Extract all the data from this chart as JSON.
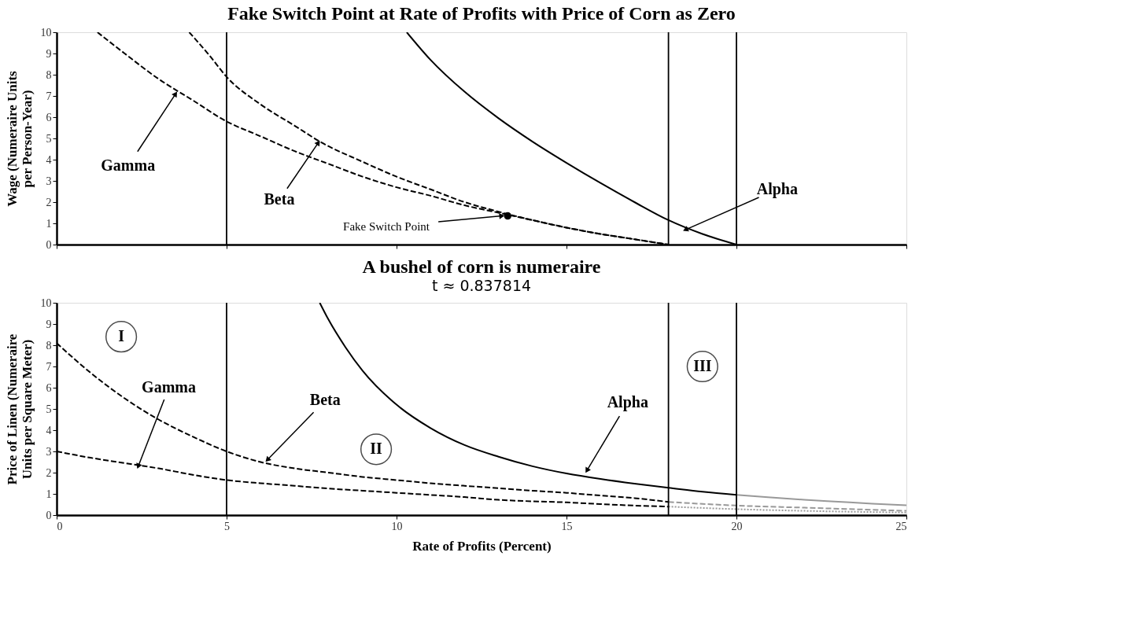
{
  "chart_data": [
    {
      "type": "line",
      "title": "Fake Switch Point at Rate of Profits with Price of Corn as Zero",
      "ylabel": "Wage (Numeraire Units per Person-Year)",
      "xlim": [
        0,
        25
      ],
      "xticks": [
        0,
        5,
        10,
        15,
        20,
        25
      ],
      "ylim": [
        0,
        10
      ],
      "yticks": [
        0,
        1,
        2,
        3,
        4,
        5,
        6,
        7,
        8,
        9,
        10
      ],
      "tick_labels": "y",
      "grid": false,
      "series": [
        {
          "color": "#000000",
          "line_style": "dashed",
          "x": [
            1.2,
            2,
            3,
            4,
            5,
            6,
            7,
            8,
            9,
            10,
            11,
            12,
            13,
            14,
            15,
            16,
            17,
            18
          ],
          "values": [
            10,
            9.0,
            7.8,
            6.8,
            5.8,
            5.1,
            4.4,
            3.8,
            3.2,
            2.7,
            2.3,
            1.85,
            1.5,
            1.15,
            0.8,
            0.5,
            0.25,
            0
          ]
        },
        {
          "color": "#000000",
          "line_style": "dashed",
          "x": [
            3.9,
            4.5,
            5,
            6,
            7,
            7.8,
            9,
            10,
            11,
            12,
            13,
            14,
            15,
            16,
            17,
            18
          ],
          "values": [
            10,
            8.9,
            7.9,
            6.6,
            5.6,
            4.8,
            3.9,
            3.2,
            2.6,
            2.0,
            1.55,
            1.15,
            0.8,
            0.5,
            0.25,
            0
          ]
        },
        {
          "color": "#000000",
          "line_style": "solid",
          "x": [
            10.3,
            11,
            12,
            13,
            14,
            15,
            16,
            17,
            18,
            19,
            20
          ],
          "values": [
            10,
            8.7,
            7.2,
            5.95,
            4.85,
            3.85,
            2.9,
            2.0,
            1.15,
            0.5,
            0
          ]
        },
        {
          "type": "scatter",
          "marker": "circle",
          "color": "#000000",
          "x": [
            13.27
          ],
          "values": [
            1.35
          ]
        }
      ],
      "ref_lines": [
        {
          "axis": "x",
          "value": 5,
          "color": "#000000"
        },
        {
          "axis": "x",
          "value": 18,
          "color": "#000000"
        },
        {
          "axis": "x",
          "value": 20,
          "color": "#000000"
        }
      ],
      "annotations": [
        {
          "text": "Gamma",
          "x": 3.5,
          "y": 7.1
        },
        {
          "text": "Beta",
          "x": 7.7,
          "y": 4.8
        },
        {
          "text": "Alpha",
          "x": 18.5,
          "y": 0.7
        },
        {
          "text": "Fake Switch Point",
          "x": 13.1,
          "y": 1.35
        }
      ]
    },
    {
      "type": "line",
      "title": "A bushel of corn is numeraire",
      "subtitle": "t ≈ 0.837814",
      "xlabel": "Rate of Profits (Percent)",
      "ylabel": "Price of Linen (Numeraire Units per Square Meter)",
      "xlim": [
        0,
        25
      ],
      "xticks": [
        0,
        5,
        10,
        15,
        20,
        25
      ],
      "ylim": [
        0,
        10
      ],
      "yticks": [
        0,
        1,
        2,
        3,
        4,
        5,
        6,
        7,
        8,
        9,
        10
      ],
      "grid": false,
      "series": [
        {
          "color": "#000000",
          "line_style": "dashed",
          "x": [
            0,
            1,
            2,
            3,
            4,
            5,
            6,
            7,
            8,
            9,
            10,
            11,
            12,
            13,
            14,
            15,
            16,
            17,
            18
          ],
          "values": [
            3.0,
            2.7,
            2.45,
            2.2,
            1.9,
            1.65,
            1.5,
            1.38,
            1.25,
            1.15,
            1.05,
            0.95,
            0.85,
            0.72,
            0.65,
            0.6,
            0.52,
            0.45,
            0.4
          ]
        },
        {
          "color": "#999999",
          "line_style": "dotted",
          "x": [
            18,
            20,
            22,
            25
          ],
          "values": [
            0.4,
            0.28,
            0.2,
            0.12
          ]
        },
        {
          "color": "#000000",
          "line_style": "dashed",
          "x": [
            0,
            1,
            2,
            3,
            4,
            5,
            6,
            7,
            8,
            9,
            10,
            11,
            12,
            13,
            14,
            15,
            16,
            17,
            18
          ],
          "values": [
            8.1,
            6.7,
            5.5,
            4.5,
            3.7,
            3.0,
            2.5,
            2.2,
            2.0,
            1.8,
            1.65,
            1.5,
            1.38,
            1.27,
            1.15,
            1.05,
            0.92,
            0.8,
            0.62
          ]
        },
        {
          "color": "#999999",
          "line_style": "dashed",
          "x": [
            18,
            20,
            22,
            25
          ],
          "values": [
            0.62,
            0.45,
            0.35,
            0.2
          ]
        },
        {
          "color": "#000000",
          "line_style": "solid",
          "x": [
            7.74,
            8,
            8.5,
            9,
            10,
            11,
            12,
            13,
            14,
            15,
            16,
            17,
            18,
            19,
            20
          ],
          "values": [
            10,
            9.2,
            7.9,
            6.8,
            5.2,
            4.1,
            3.3,
            2.75,
            2.3,
            1.96,
            1.7,
            1.48,
            1.29,
            1.1,
            0.95
          ]
        },
        {
          "color": "#999999",
          "line_style": "solid",
          "x": [
            20,
            21,
            22,
            23,
            24,
            25
          ],
          "values": [
            0.95,
            0.83,
            0.72,
            0.63,
            0.54,
            0.46
          ]
        }
      ],
      "ref_lines": [
        {
          "axis": "x",
          "value": 5,
          "color": "#000000"
        },
        {
          "axis": "x",
          "value": 18,
          "color": "#000000"
        },
        {
          "axis": "x",
          "value": 20,
          "color": "#000000"
        }
      ],
      "annotations": [
        {
          "text": "Gamma",
          "x": 2.4,
          "y": 2.3
        },
        {
          "text": "Beta",
          "x": 6.2,
          "y": 2.6
        },
        {
          "text": "Alpha",
          "x": 15.6,
          "y": 2.1
        },
        {
          "text": "I",
          "x": 1.9,
          "y": 8.4
        },
        {
          "text": "II",
          "x": 9.4,
          "y": 3.1
        },
        {
          "text": "III",
          "x": 19.0,
          "y": 7.0
        }
      ]
    }
  ]
}
